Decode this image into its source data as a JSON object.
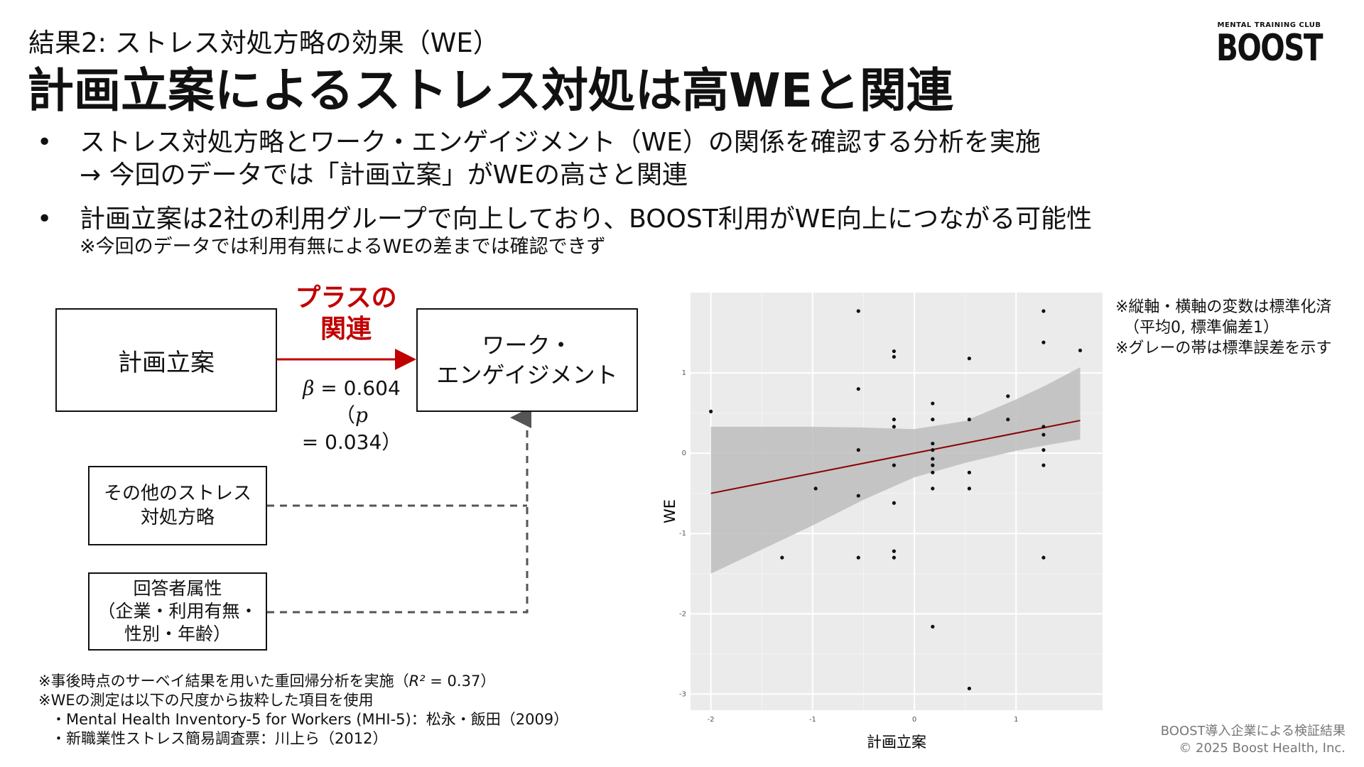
{
  "header": {
    "subtitle": "結果2: ストレス対処方略の効果（WE）",
    "title": "計画立案によるストレス対処は高WEと関連",
    "logo_small": "MENTAL TRAINING CLUB",
    "logo_big": "BOOST"
  },
  "bullets": [
    {
      "marker": "•",
      "line1": "ストレス対処方略とワーク・エンゲイジメント（WE）の関係を確認する分析を実施",
      "line2": "→ 今回のデータでは「計画立案」がWEの高さと関連"
    },
    {
      "marker": "•",
      "line1": "計画立案は2社の利用グループで向上しており、BOOST利用がWE向上につながる可能性",
      "line2": "※今回のデータでは利用有無によるWEの差までは確認できず"
    }
  ],
  "diagram": {
    "box_plan": "計画立案",
    "box_we_line1": "ワーク・",
    "box_we_line2": "エンゲイジメント",
    "assoc_line1": "プラスの",
    "assoc_line2": "関連",
    "beta_symbol": "β",
    "beta_value": " = 0.604",
    "p_open": "（",
    "p_symbol": "p",
    "p_value": " = 0.034）",
    "box_other_line1": "その他のストレス",
    "box_other_line2": "対処方略",
    "box_resp_line1": "回答者属性",
    "box_resp_line2": "（企業・利用有無・",
    "box_resp_line3": "性別・年齢）",
    "accent_color": "#c00000"
  },
  "footnotes": {
    "line1_pre": "※事後時点のサーベイ結果を用いた重回帰分析を実施（",
    "line1_r2": "R²",
    "line1_post": " = 0.37）",
    "line2": "※WEの測定は以下の尺度から抜粋した項目を使用",
    "line3": "・Mental Health Inventory-5 for Workers (MHI-5)：松永・飯田（2009）",
    "line4": "・新職業性ストレス簡易調査票：川上ら（2012）"
  },
  "chart_note": {
    "line1": "※縦軸・横軸の変数は標準化済",
    "line2": "（平均0, 標準偏差1）",
    "line3": "※グレーの帯は標準誤差を示す"
  },
  "source": {
    "line1": "BOOST導入企業による検証結果",
    "line2": "© 2025 Boost Health, Inc."
  },
  "chart_data": {
    "type": "scatter",
    "xlabel": "計画立案",
    "ylabel": "WE",
    "xlim": [
      -2.2,
      1.85
    ],
    "ylim": [
      -3.2,
      2.0
    ],
    "xticks": [
      -2,
      -1,
      0,
      1
    ],
    "yticks": [
      -3,
      -2,
      -1,
      0,
      1
    ],
    "xtick_labels": [
      "-2",
      "-1",
      "0",
      "1"
    ],
    "ytick_labels": [
      "-3",
      "-2",
      "-1",
      "0",
      "1"
    ],
    "grid": true,
    "panel_color": "#ebebeb",
    "regression": {
      "slope": 0.25,
      "intercept": 0.0,
      "x_range": [
        -2.0,
        1.63
      ],
      "color": "#8b0000"
    },
    "ci_band": {
      "x": [
        -2.0,
        -1.5,
        -1.0,
        -0.5,
        0.0,
        0.5,
        1.0,
        1.3,
        1.63
      ],
      "lower": [
        -1.5,
        -1.2,
        -0.9,
        -0.58,
        -0.3,
        -0.12,
        0.03,
        0.1,
        0.17
      ],
      "upper": [
        0.33,
        0.33,
        0.33,
        0.32,
        0.3,
        0.4,
        0.67,
        0.85,
        1.07
      ],
      "color": "#bdbdbd"
    },
    "points": [
      {
        "x": -2.0,
        "y": 0.52
      },
      {
        "x": -1.3,
        "y": -1.3
      },
      {
        "x": -0.97,
        "y": -0.44
      },
      {
        "x": -0.55,
        "y": 1.77
      },
      {
        "x": -0.55,
        "y": 0.8
      },
      {
        "x": -0.55,
        "y": 0.04
      },
      {
        "x": -0.55,
        "y": -0.53
      },
      {
        "x": -0.55,
        "y": -1.3
      },
      {
        "x": -0.2,
        "y": 1.27
      },
      {
        "x": -0.2,
        "y": 1.2
      },
      {
        "x": -0.2,
        "y": 0.42
      },
      {
        "x": -0.2,
        "y": 0.33
      },
      {
        "x": -0.2,
        "y": -0.15
      },
      {
        "x": -0.2,
        "y": -0.62
      },
      {
        "x": -0.2,
        "y": -1.22
      },
      {
        "x": -0.2,
        "y": -1.3
      },
      {
        "x": 0.18,
        "y": 0.62
      },
      {
        "x": 0.18,
        "y": 0.42
      },
      {
        "x": 0.18,
        "y": 0.12
      },
      {
        "x": 0.18,
        "y": 0.04
      },
      {
        "x": 0.18,
        "y": -0.07
      },
      {
        "x": 0.18,
        "y": -0.15
      },
      {
        "x": 0.18,
        "y": -0.24
      },
      {
        "x": 0.18,
        "y": -0.44
      },
      {
        "x": 0.18,
        "y": -2.16
      },
      {
        "x": 0.54,
        "y": 1.18
      },
      {
        "x": 0.54,
        "y": 0.42
      },
      {
        "x": 0.54,
        "y": -0.24
      },
      {
        "x": 0.54,
        "y": -0.44
      },
      {
        "x": 0.54,
        "y": -2.93
      },
      {
        "x": 0.92,
        "y": 0.71
      },
      {
        "x": 0.92,
        "y": 0.42
      },
      {
        "x": 1.27,
        "y": 1.77
      },
      {
        "x": 1.27,
        "y": 1.38
      },
      {
        "x": 1.27,
        "y": 0.33
      },
      {
        "x": 1.27,
        "y": 0.23
      },
      {
        "x": 1.27,
        "y": 0.04
      },
      {
        "x": 1.27,
        "y": -0.15
      },
      {
        "x": 1.27,
        "y": -1.3
      },
      {
        "x": 1.63,
        "y": 1.28
      }
    ]
  }
}
